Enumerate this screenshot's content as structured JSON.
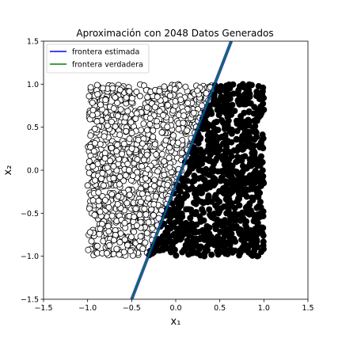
{
  "chart_data": {
    "type": "scatter",
    "title": "Aproximación con 2048 Datos Generados",
    "xlabel": "x₁",
    "ylabel": "x₂",
    "xlim": [
      -1.5,
      1.5
    ],
    "ylim": [
      -1.5,
      1.5
    ],
    "xticks": [
      -1.5,
      -1.0,
      -0.5,
      0.0,
      0.5,
      1.0,
      1.5
    ],
    "yticks": [
      -1.5,
      -1.0,
      -0.5,
      0.0,
      0.5,
      1.0,
      1.5
    ],
    "xtick_labels": [
      "−1.5",
      "−1.0",
      "−0.5",
      "0.0",
      "0.5",
      "1.0",
      "1.5"
    ],
    "ytick_labels": [
      "−1.5",
      "−1.0",
      "−0.5",
      "0.0",
      "0.5",
      "1.0",
      "1.5"
    ],
    "grid": false,
    "legend": {
      "placement": "top-left",
      "entries": [
        {
          "label": "frontera estimada",
          "color": "#0000ff"
        },
        {
          "label": "frontera verdadera",
          "color": "#008000"
        }
      ]
    },
    "points": {
      "count": 2048,
      "x_range": [
        -1.0,
        1.0
      ],
      "y_range": [
        -1.0,
        1.0
      ],
      "class_negative": {
        "face_color": "#ffffff",
        "edge_color": "#000000",
        "region": "left of boundary"
      },
      "class_positive": {
        "face_color": "#000000",
        "edge_color": "#000000",
        "region": "right of boundary"
      }
    },
    "lines": [
      {
        "name": "frontera estimada",
        "color": "#0000ff",
        "x": [
          -0.5,
          0.63
        ],
        "y": [
          -1.5,
          1.5
        ]
      },
      {
        "name": "frontera verdadera",
        "color": "#008000",
        "x": [
          -0.5,
          0.63
        ],
        "y": [
          -1.5,
          1.5
        ]
      }
    ]
  }
}
